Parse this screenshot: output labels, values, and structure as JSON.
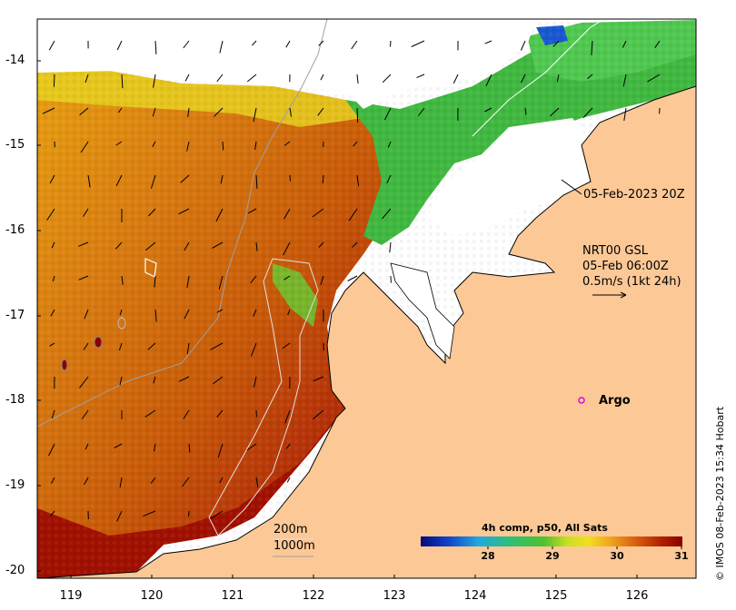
{
  "map": {
    "y_ticks": [
      "-14",
      "-15",
      "-16",
      "-17",
      "-18",
      "-19",
      "-20"
    ],
    "x_ticks": [
      "119",
      "120",
      "121",
      "122",
      "123",
      "124",
      "125",
      "126"
    ],
    "annotations": {
      "track_date": "05-Feb-2023 20Z",
      "current_source": "NRT00 GSL",
      "current_time": "05-Feb 06:00Z",
      "current_scale": "0.5m/s (1kt 24h)",
      "argo_label": "Argo",
      "contour_200": "200m",
      "contour_1000": "1000m"
    },
    "colorbar": {
      "title": "4h comp, p50, All Sats",
      "ticks": [
        "28",
        "29",
        "30",
        "31"
      ],
      "colors": [
        "#0a0a8a",
        "#1560d8",
        "#20b8e0",
        "#30c060",
        "#a8d820",
        "#f0e020",
        "#f0a020",
        "#d86010",
        "#b02000",
        "#8a0000"
      ]
    },
    "credit": "© IMOS 08-Feb-2023 15:34 Hobart",
    "land_color": "#fcc896"
  }
}
